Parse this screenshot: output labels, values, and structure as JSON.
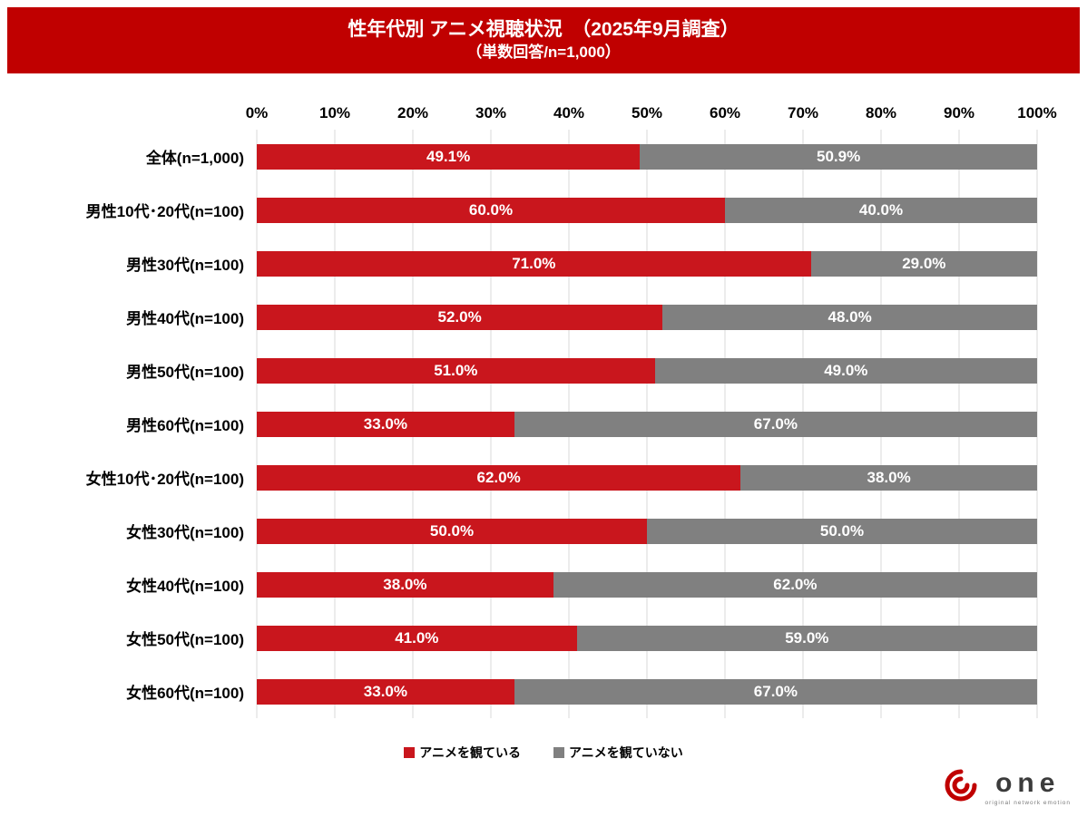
{
  "header": {
    "title": "性年代別 アニメ視聴状況　（2025年9月調査）",
    "subtitle": "（単数回答/n=1,000）",
    "bg_color": "#C00000"
  },
  "chart_data": {
    "type": "bar",
    "orientation": "horizontal",
    "stacked": true,
    "title": "性年代別 アニメ視聴状況 （2025年9月調査）",
    "subtitle": "（単数回答/n=1,000）",
    "categories": [
      "全体(n=1,000)",
      "男性10代･20代(n=100)",
      "男性30代(n=100)",
      "男性40代(n=100)",
      "男性50代(n=100)",
      "男性60代(n=100)",
      "女性10代･20代(n=100)",
      "女性30代(n=100)",
      "女性40代(n=100)",
      "女性50代(n=100)",
      "女性60代(n=100)"
    ],
    "series": [
      {
        "name": "アニメを観ている",
        "color": "#C9161D",
        "values": [
          49.1,
          60.0,
          71.0,
          52.0,
          51.0,
          33.0,
          62.0,
          50.0,
          38.0,
          41.0,
          33.0
        ]
      },
      {
        "name": "アニメを観ていない",
        "color": "#808080",
        "values": [
          50.9,
          40.0,
          29.0,
          48.0,
          49.0,
          67.0,
          38.0,
          50.0,
          62.0,
          59.0,
          67.0
        ]
      }
    ],
    "value_suffix": "%",
    "x_ticks": [
      "0%",
      "10%",
      "20%",
      "30%",
      "40%",
      "50%",
      "60%",
      "70%",
      "80%",
      "90%",
      "100%"
    ],
    "xlim": [
      0,
      100
    ],
    "grid": true,
    "gridline_color": "#D9D9D9",
    "legend_position": "bottom"
  },
  "legend": {
    "items": [
      {
        "label": "アニメを観ている",
        "color": "#C9161D"
      },
      {
        "label": "アニメを観ていない",
        "color": "#808080"
      }
    ]
  },
  "logo": {
    "text": "one",
    "caption": "original network emotion",
    "accent_color": "#C00000"
  }
}
